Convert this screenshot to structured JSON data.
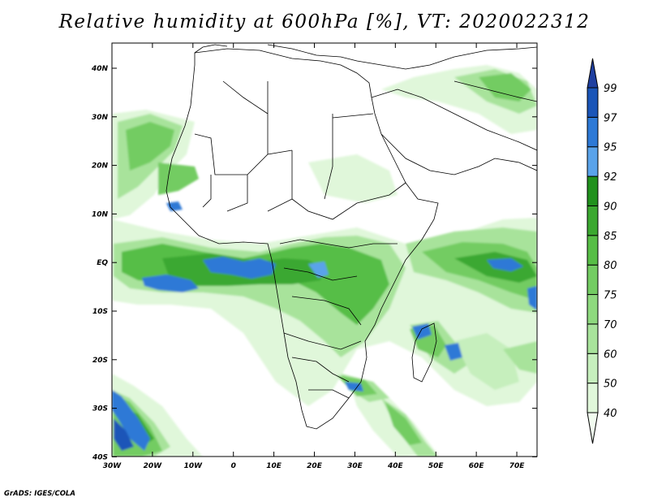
{
  "title": "Relative humidity at 600hPa [%], VT: 2020022312",
  "credit": "GrADS: IGES/COLA",
  "map": {
    "variable": "Relative humidity",
    "level": "600hPa",
    "unit": "%",
    "valid_time": "2020022312",
    "lon_labels": [
      "30W",
      "20W",
      "10W",
      "0",
      "10E",
      "20E",
      "30E",
      "40E",
      "50E",
      "60E",
      "70E"
    ],
    "lat_labels": [
      "40N",
      "30N",
      "20N",
      "10N",
      "EQ",
      "10S",
      "20S",
      "30S",
      "40S"
    ],
    "colorbar": {
      "levels": [
        "40",
        "50",
        "60",
        "70",
        "75",
        "80",
        "85",
        "90",
        "92",
        "95",
        "97",
        "99"
      ],
      "colors": [
        "#f2fcf0",
        "#e0f7da",
        "#c6efbd",
        "#a8e39b",
        "#8ed97e",
        "#73cc62",
        "#57be46",
        "#3ba830",
        "#21911d",
        "#5aa3ea",
        "#2d79d6",
        "#1a55b8",
        "#1f3fa0"
      ]
    }
  }
}
